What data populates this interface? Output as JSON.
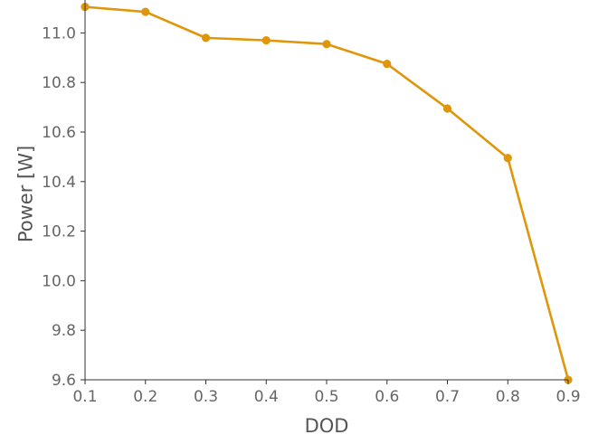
{
  "chart_data": {
    "type": "line",
    "title": "",
    "xlabel": "DOD",
    "ylabel": "Power [W]",
    "xlim": [
      0.1,
      0.9
    ],
    "ylim": [
      9.6,
      11.1
    ],
    "x_ticks": [
      "0.1",
      "0.2",
      "0.3",
      "0.4",
      "0.5",
      "0.6",
      "0.7",
      "0.8",
      "0.9"
    ],
    "y_ticks": [
      "9.6",
      "9.8",
      "10.0",
      "10.2",
      "10.4",
      "10.6",
      "10.8",
      "11.0"
    ],
    "grid": false,
    "legend": "none",
    "series": [
      {
        "color": "#E0960A",
        "marker": "circle",
        "x": [
          0.1,
          0.2,
          0.3,
          0.4,
          0.5,
          0.6,
          0.7,
          0.8,
          0.9
        ],
        "y": [
          11.105,
          11.085,
          10.98,
          10.97,
          10.955,
          10.875,
          10.695,
          10.495,
          9.6
        ]
      }
    ]
  }
}
